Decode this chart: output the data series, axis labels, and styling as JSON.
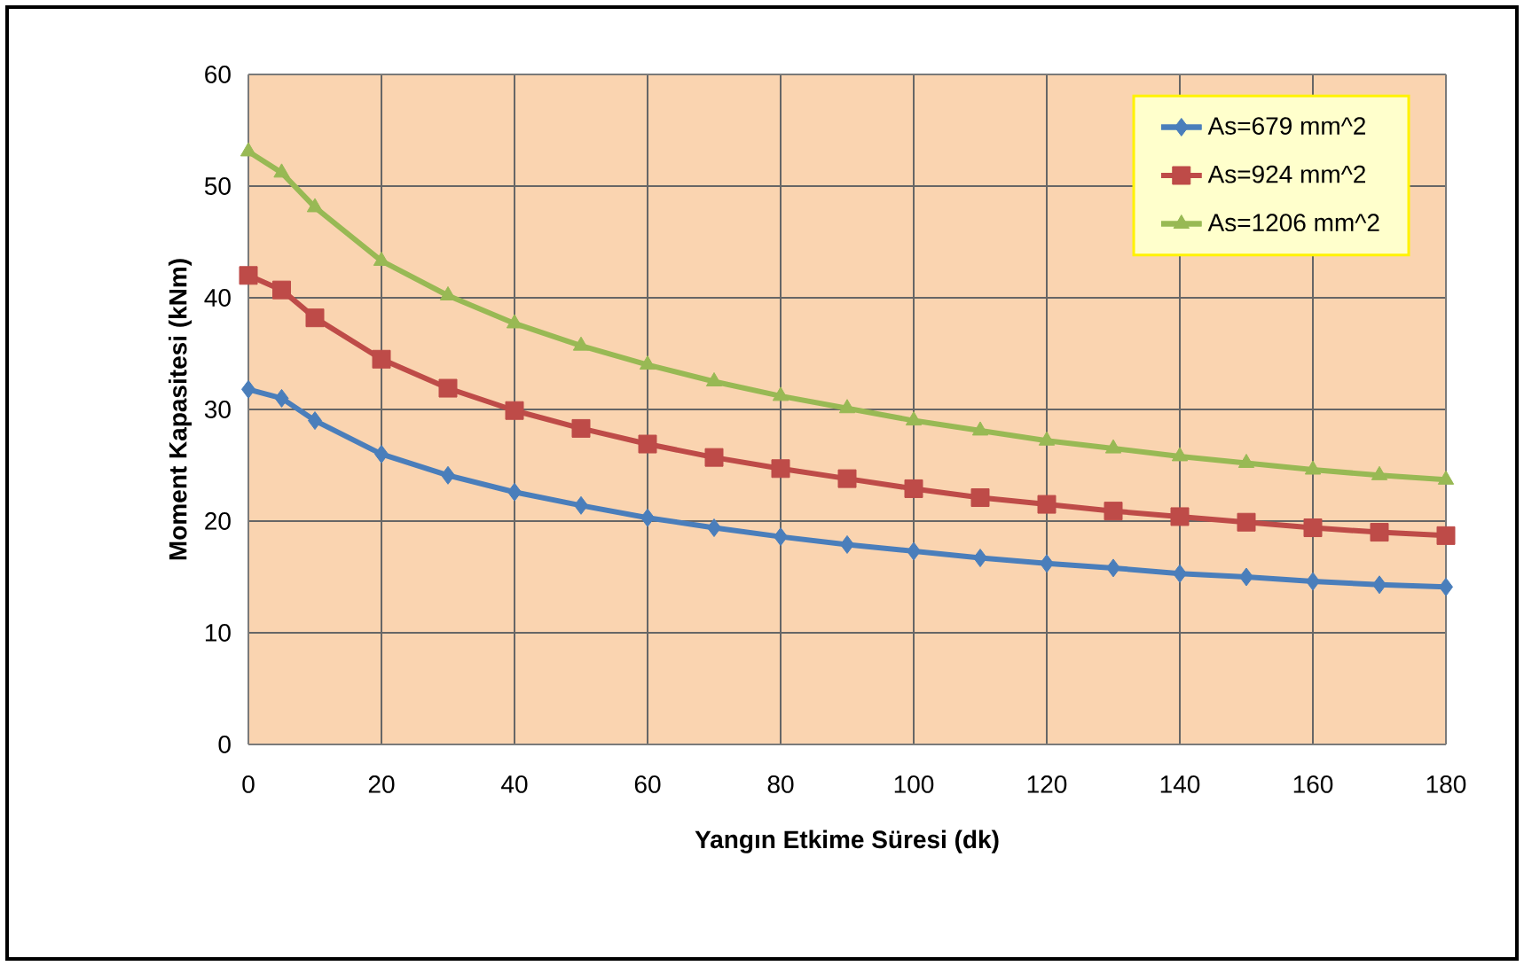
{
  "chart_data": {
    "type": "line",
    "xlabel": "Yangın Etkime Süresi (dk)",
    "ylabel": "Moment Kapasitesi (kNm)",
    "x": [
      0,
      5,
      10,
      20,
      30,
      40,
      50,
      60,
      70,
      80,
      90,
      100,
      110,
      120,
      130,
      140,
      150,
      160,
      170,
      180
    ],
    "series": [
      {
        "name": "As=679 mm^2",
        "color": "#4a7ebb",
        "marker": "diamond",
        "values": [
          31.8,
          31,
          29,
          26,
          24.1,
          22.6,
          21.4,
          20.3,
          19.4,
          18.6,
          17.9,
          17.3,
          16.7,
          16.2,
          15.8,
          15.3,
          15.0,
          14.6,
          14.3,
          14.1
        ]
      },
      {
        "name": "As=924 mm^2",
        "color": "#be4b48",
        "marker": "square",
        "values": [
          42,
          40.7,
          38.2,
          34.5,
          31.9,
          29.9,
          28.3,
          26.9,
          25.7,
          24.7,
          23.8,
          22.9,
          22.1,
          21.5,
          20.9,
          20.4,
          19.9,
          19.4,
          19.0,
          18.7
        ]
      },
      {
        "name": "As=1206 mm^2",
        "color": "#98b954",
        "marker": "triangle",
        "values": [
          53.1,
          51.2,
          48.1,
          43.3,
          40.2,
          37.7,
          35.7,
          34.0,
          32.5,
          31.2,
          30.1,
          29.0,
          28.1,
          27.2,
          26.5,
          25.8,
          25.2,
          24.6,
          24.1,
          23.7
        ]
      }
    ],
    "xlim": [
      0,
      180
    ],
    "xticks": [
      0,
      20,
      40,
      60,
      80,
      100,
      120,
      140,
      160,
      180
    ],
    "ylim": [
      0,
      60
    ],
    "yticks": [
      0,
      10,
      20,
      30,
      40,
      50,
      60
    ],
    "grid": true,
    "legend": "top right",
    "line_style": "solid"
  }
}
